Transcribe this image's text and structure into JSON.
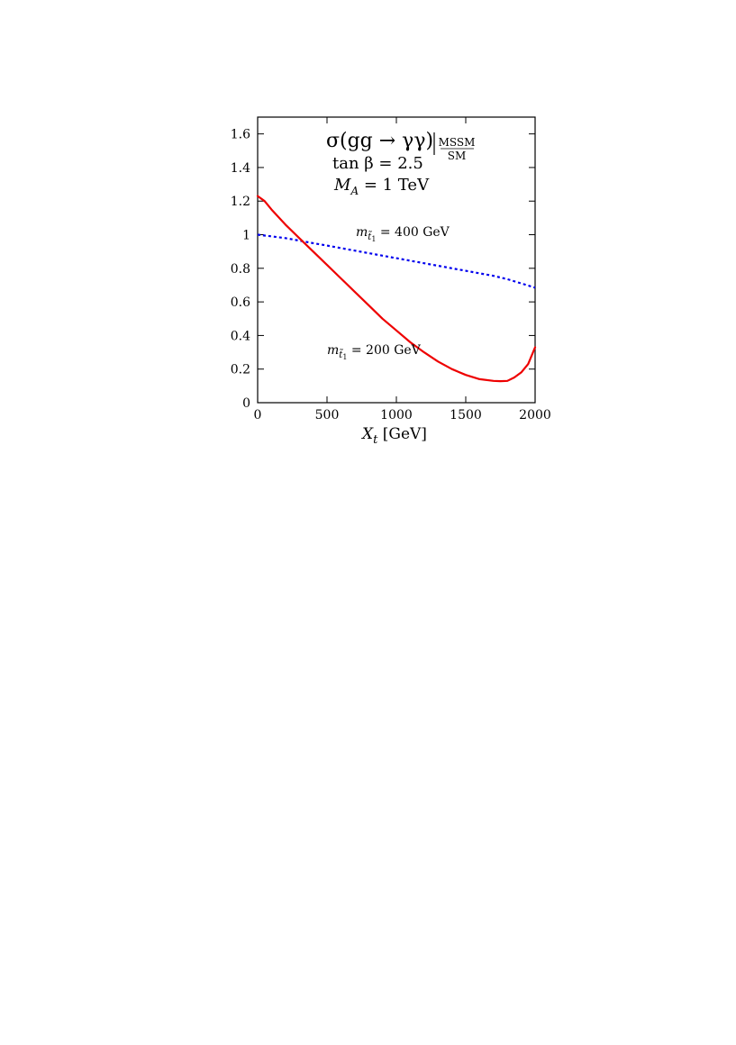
{
  "chart_data": {
    "type": "line",
    "title": {
      "main": "σ(gg → γγ)",
      "ratio_num": "MSSM",
      "ratio_den": "SM"
    },
    "annotations": {
      "tanb": "tan β = 2.5",
      "ma": "M",
      "ma_sub": "A",
      "ma_val": " = 1 TeV"
    },
    "xlabel": {
      "var": "X",
      "sub": "t",
      "unit": " [GeV]"
    },
    "xlim": [
      0,
      2000
    ],
    "ylim": [
      0,
      1.7
    ],
    "xticks": [
      0,
      500,
      1000,
      1500,
      2000
    ],
    "xtick_labels": [
      "0",
      "500",
      "1000",
      "1500",
      "2000"
    ],
    "yticks": [
      0,
      0.2,
      0.4,
      0.6,
      0.8,
      1.0,
      1.2,
      1.4,
      1.6
    ],
    "ytick_labels": [
      "0",
      "0.2",
      "0.4",
      "0.6",
      "0.8",
      "1",
      "1.2",
      "1.4",
      "1.6"
    ],
    "series": [
      {
        "name_m": "m",
        "name_sub": "t̃",
        "name_subsub": "1",
        "name_val": " = 400 GeV",
        "color": "#0000ee",
        "style": "dotted",
        "x": [
          0,
          100,
          200,
          300,
          400,
          500,
          600,
          700,
          800,
          900,
          1000,
          1100,
          1200,
          1300,
          1400,
          1500,
          1600,
          1700,
          1800,
          1900,
          2000
        ],
        "y": [
          1.0,
          0.99,
          0.98,
          0.965,
          0.95,
          0.935,
          0.92,
          0.905,
          0.89,
          0.875,
          0.86,
          0.845,
          0.83,
          0.815,
          0.8,
          0.785,
          0.77,
          0.755,
          0.735,
          0.71,
          0.685
        ]
      },
      {
        "name_m": "m",
        "name_sub": "t̃",
        "name_subsub": "1",
        "name_val": " = 200 GeV",
        "color": "#ee0000",
        "style": "solid",
        "x": [
          0,
          50,
          100,
          200,
          300,
          400,
          500,
          600,
          700,
          800,
          900,
          1000,
          1100,
          1200,
          1300,
          1400,
          1500,
          1600,
          1700,
          1750,
          1800,
          1850,
          1900,
          1950,
          2000
        ],
        "y": [
          1.23,
          1.2,
          1.15,
          1.06,
          0.98,
          0.9,
          0.82,
          0.74,
          0.66,
          0.58,
          0.5,
          0.43,
          0.36,
          0.3,
          0.245,
          0.2,
          0.165,
          0.14,
          0.13,
          0.128,
          0.13,
          0.15,
          0.18,
          0.23,
          0.33
        ]
      }
    ]
  }
}
